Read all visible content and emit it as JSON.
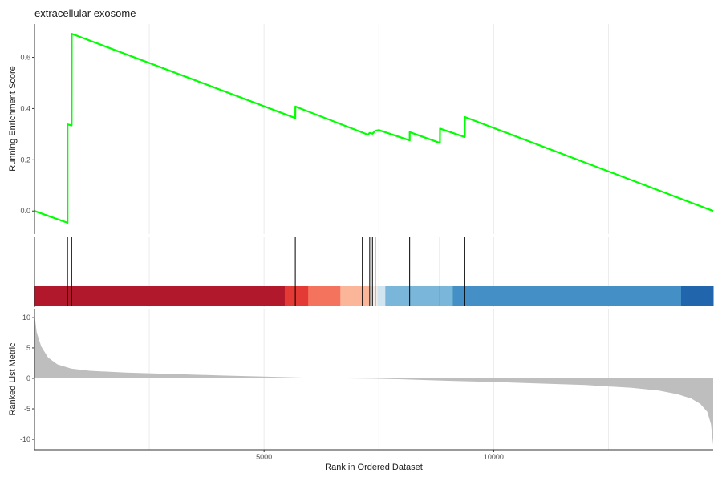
{
  "title": "extracellular exosome",
  "colors": {
    "es_line": "#00ff00",
    "hit": "#000000",
    "metric_fill": "#bebebe",
    "axis": "#333333",
    "grid": "#ebebeb"
  },
  "chart_data": {
    "type": "line",
    "title": "extracellular exosome",
    "xlabel": "Rank in Ordered Dataset",
    "xlim": [
      1,
      14779
    ],
    "x_ticks": [
      5000,
      10000
    ],
    "x_tick_labels": [
      "5000",
      "10000"
    ],
    "es_panel": {
      "ylabel": "Running Enrichment Score",
      "ylim": [
        -0.09,
        0.73
      ],
      "y_ticks": [
        0.0,
        0.2,
        0.4,
        0.6
      ],
      "y_tick_labels": [
        "0.0",
        "0.2",
        "0.4",
        "0.6"
      ],
      "x": [
        1,
        720,
        721,
        810,
        811,
        5680,
        5681,
        7260,
        7300,
        7360,
        7420,
        7500,
        8170,
        8171,
        8830,
        8831,
        9370,
        9371,
        14779
      ],
      "y": [
        0.0,
        -0.046,
        0.338,
        0.334,
        0.692,
        0.363,
        0.408,
        0.298,
        0.305,
        0.302,
        0.313,
        0.316,
        0.276,
        0.308,
        0.266,
        0.322,
        0.289,
        0.367,
        0.0
      ]
    },
    "hits": [
      720,
      810,
      5680,
      7140,
      7300,
      7360,
      7420,
      8170,
      8830,
      9370
    ],
    "color_bar": [
      {
        "from": 1,
        "to": 5450,
        "color": "#b2182b"
      },
      {
        "from": 5450,
        "to": 5960,
        "color": "#e33a35"
      },
      {
        "from": 5960,
        "to": 6660,
        "color": "#f4735c"
      },
      {
        "from": 6660,
        "to": 7290,
        "color": "#fbb69a"
      },
      {
        "from": 7290,
        "to": 7470,
        "color": "#f3ece8"
      },
      {
        "from": 7470,
        "to": 7640,
        "color": "#d1e5f0"
      },
      {
        "from": 7640,
        "to": 9110,
        "color": "#79b6da"
      },
      {
        "from": 9110,
        "to": 14080,
        "color": "#4490c6"
      },
      {
        "from": 14080,
        "to": 14779,
        "color": "#2166ac"
      }
    ],
    "metric_panel": {
      "ylabel": "Ranked List Metric",
      "ylim": [
        -11.7,
        11.3
      ],
      "y_ticks": [
        10,
        5,
        0,
        -5,
        -10
      ],
      "y_tick_labels": [
        "10",
        "5",
        "0",
        "-5",
        "-10"
      ],
      "x": [
        1,
        50,
        150,
        300,
        500,
        800,
        1200,
        2000,
        3000,
        4000,
        5000,
        6000,
        6800,
        7400,
        8000,
        9000,
        10000,
        11000,
        12000,
        13000,
        13600,
        14000,
        14300,
        14500,
        14650,
        14730,
        14779
      ],
      "y": [
        10.5,
        7.5,
        5.2,
        3.4,
        2.3,
        1.6,
        1.25,
        0.95,
        0.72,
        0.5,
        0.3,
        0.1,
        0.0,
        -0.05,
        -0.15,
        -0.4,
        -0.6,
        -0.85,
        -1.1,
        -1.55,
        -2.0,
        -2.6,
        -3.3,
        -4.2,
        -5.5,
        -7.5,
        -10.9
      ]
    }
  }
}
